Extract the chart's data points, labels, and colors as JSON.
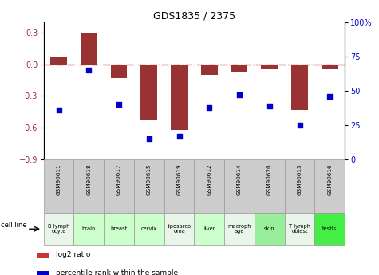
{
  "title": "GDS1835 / 2375",
  "samples": [
    "GSM90611",
    "GSM90618",
    "GSM90617",
    "GSM90615",
    "GSM90619",
    "GSM90612",
    "GSM90614",
    "GSM90620",
    "GSM90613",
    "GSM90616"
  ],
  "cell_lines": [
    "B lymph\nocyte",
    "brain",
    "breast",
    "cervix",
    "liposarco\noma",
    "liver",
    "macroph\nage",
    "skin",
    "T lymph\noblast",
    "testis"
  ],
  "cell_line_colors": [
    "#e8f5e8",
    "#ccffcc",
    "#ccffcc",
    "#ccffcc",
    "#e8f5e8",
    "#ccffcc",
    "#e8f5e8",
    "#99ee99",
    "#e8f5e8",
    "#44ee44"
  ],
  "log2_ratio": [
    0.07,
    0.3,
    -0.13,
    -0.52,
    -0.62,
    -0.1,
    -0.07,
    -0.05,
    -0.43,
    -0.04
  ],
  "percentile_rank": [
    36,
    65,
    40,
    15,
    17,
    38,
    47,
    39,
    25,
    46
  ],
  "ylim_left": [
    -0.9,
    0.4
  ],
  "ylim_right": [
    0,
    100
  ],
  "yticks_left": [
    -0.9,
    -0.6,
    -0.3,
    0,
    0.3
  ],
  "yticks_right": [
    0,
    25,
    50,
    75,
    100
  ],
  "ytick_labels_right": [
    "0",
    "25",
    "50",
    "75",
    "100%"
  ],
  "bar_color": "#993333",
  "dot_color": "#0000cc",
  "grid_color": "#000000",
  "dashed_color": "#cc3333",
  "header_bg": "#cccccc",
  "legend_bar_color": "#cc3333",
  "legend_dot_color": "#0000cc"
}
